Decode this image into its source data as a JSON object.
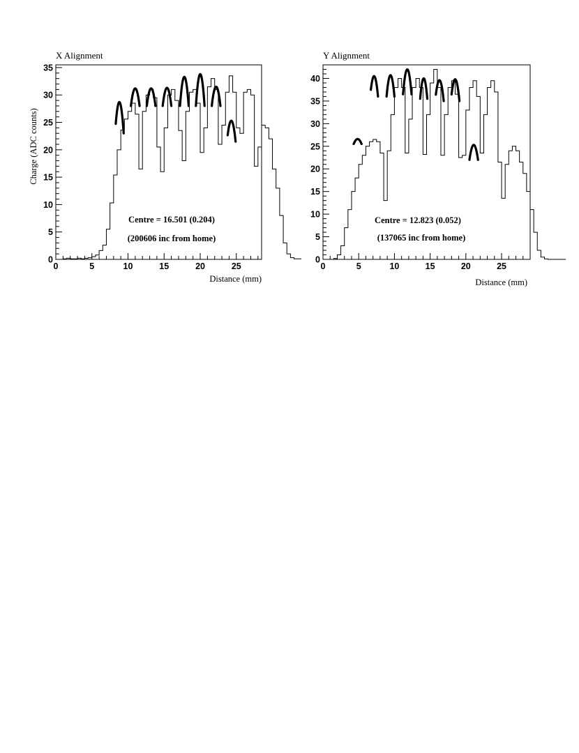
{
  "chart_data": [
    {
      "type": "line",
      "title": "X Alignment",
      "xlabel": "Distance (mm)",
      "ylabel": "Charge (ADC counts)",
      "xlim": [
        0,
        28.5
      ],
      "ylim": [
        0,
        35.5
      ],
      "x_ticks": [
        0,
        5,
        10,
        15,
        20,
        25
      ],
      "y_ticks": [
        0,
        5,
        10,
        15,
        20,
        25,
        30,
        35
      ],
      "grid": false,
      "annotations": [
        "Centre = 16.501 (0.204)",
        "(200606 inc from home)"
      ],
      "annotation_color": "#ee1111",
      "series": [
        {
          "style": "histogram",
          "bin_width": 0.5,
          "x_start": 0,
          "values": [
            0,
            0,
            0.1,
            0.2,
            0.1,
            0.1,
            0.2,
            0.1,
            0.2,
            0.3,
            0.5,
            0.8,
            1.6,
            2.6,
            5.5,
            10.3,
            15.4,
            20,
            23.6,
            25.6,
            27,
            28.5,
            26.5,
            16.5,
            27,
            30,
            31,
            29.5,
            20.5,
            16,
            24,
            30,
            31,
            29,
            23.5,
            18,
            27,
            30.5,
            31,
            28.5,
            19.5,
            24,
            31.5,
            33,
            31,
            21,
            24.5,
            30.5,
            33.5,
            30.5,
            24,
            23,
            30.5,
            31,
            30,
            17,
            20.5,
            24.5,
            24,
            22,
            16.5,
            13,
            8,
            3,
            1,
            0.3,
            0.1,
            0.1
          ]
        },
        {
          "style": "fit",
          "arcs": [
            {
              "x": [
                8.3,
                9.4
              ],
              "peak_x": 8.8,
              "peak_y": 28.7,
              "end_y": 23
            },
            {
              "x": [
                10.4,
                11.6
              ],
              "peak_x": 11.0,
              "peak_y": 31.2,
              "end_y": 28
            },
            {
              "x": [
                12.6,
                13.8
              ],
              "peak_x": 13.2,
              "peak_y": 31.2,
              "end_y": 28
            },
            {
              "x": [
                14.8,
                16.0
              ],
              "peak_x": 15.4,
              "peak_y": 31.3,
              "end_y": 28
            },
            {
              "x": [
                17.2,
                18.4
              ],
              "peak_x": 17.8,
              "peak_y": 33.3,
              "end_y": 28
            },
            {
              "x": [
                19.4,
                20.6
              ],
              "peak_x": 20.0,
              "peak_y": 33.8,
              "end_y": 28
            },
            {
              "x": [
                21.6,
                22.8
              ],
              "peak_x": 22.2,
              "peak_y": 31.5,
              "end_y": 28
            },
            {
              "x": [
                23.8,
                24.9
              ],
              "peak_x": 24.3,
              "peak_y": 25.3,
              "end_y": 21.5
            }
          ]
        }
      ]
    },
    {
      "type": "line",
      "title": "Y Alignment",
      "xlabel": "Distance (mm)",
      "ylabel": "",
      "xlim": [
        0,
        29
      ],
      "ylim": [
        0,
        43
      ],
      "x_ticks": [
        0,
        5,
        10,
        15,
        20,
        25
      ],
      "y_ticks": [
        0,
        5,
        10,
        15,
        20,
        25,
        30,
        35,
        40
      ],
      "grid": false,
      "annotations": [
        "Centre = 12.823 (0.052)",
        "(137065 inc from home)"
      ],
      "annotation_color": "#ee1111",
      "series": [
        {
          "style": "histogram",
          "bin_width": 0.5,
          "x_start": 0,
          "values": [
            0,
            0,
            0,
            0.2,
            1,
            3,
            7,
            11,
            15,
            18,
            21,
            23,
            25,
            26,
            26.5,
            26,
            23.5,
            13,
            24,
            32,
            38,
            40,
            38,
            23.5,
            31,
            38,
            40,
            38,
            23.2,
            32,
            39,
            42,
            38,
            23,
            32,
            38,
            39.5,
            36.5,
            22.5,
            23,
            33,
            38,
            39.5,
            36,
            23.5,
            32,
            38,
            39.5,
            37,
            21.5,
            13.5,
            21,
            24,
            25,
            24,
            21.5,
            19,
            15,
            11,
            6,
            2,
            0.5,
            0.1,
            0,
            0,
            0,
            0,
            0
          ]
        },
        {
          "style": "fit",
          "arcs": [
            {
              "x": [
                4.3,
                5.4
              ],
              "peak_x": 4.85,
              "peak_y": 26.6,
              "end_y": 25.5
            },
            {
              "x": [
                6.7,
                7.7
              ],
              "peak_x": 7.15,
              "peak_y": 40.5,
              "end_y": 36
            },
            {
              "x": [
                8.9,
                10.0
              ],
              "peak_x": 9.45,
              "peak_y": 40.7,
              "end_y": 36
            },
            {
              "x": [
                11.2,
                12.4
              ],
              "peak_x": 11.8,
              "peak_y": 42.0,
              "end_y": 36.5
            },
            {
              "x": [
                13.6,
                14.6
              ],
              "peak_x": 14.1,
              "peak_y": 40.0,
              "end_y": 35.5
            },
            {
              "x": [
                15.8,
                16.9
              ],
              "peak_x": 16.3,
              "peak_y": 39.6,
              "end_y": 35
            },
            {
              "x": [
                18.0,
                19.1
              ],
              "peak_x": 18.5,
              "peak_y": 39.8,
              "end_y": 35
            },
            {
              "x": [
                20.5,
                21.7
              ],
              "peak_x": 21.1,
              "peak_y": 25.3,
              "end_y": 22
            }
          ]
        }
      ]
    }
  ]
}
